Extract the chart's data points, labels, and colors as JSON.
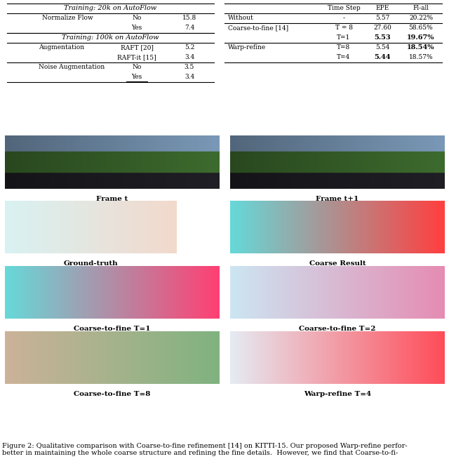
{
  "table1_title": "Training: 20k on AutoFlow",
  "table1_rows": [
    [
      "Normalize Flow",
      "No",
      "15.8"
    ],
    [
      "",
      "Yes",
      "7.4"
    ]
  ],
  "table2_title": "Training: 100k on AutoFlow",
  "table2_rows": [
    [
      "Augmentation",
      "RAFT [20]",
      "5.2"
    ],
    [
      "",
      "RAFT-it [15]",
      "3.4"
    ],
    [
      "Noise Augmentation",
      "No",
      "3.5"
    ],
    [
      "",
      "Yes",
      "3.4"
    ]
  ],
  "table3_headers": [
    "",
    "Time Step",
    "EPE",
    "Fl-all"
  ],
  "table3_rows": [
    [
      "Without",
      "-",
      "5.57",
      "20.22%"
    ],
    [
      "Coarse-to-fine [14]",
      "T = 8",
      "27.60",
      "58.65%"
    ],
    [
      "",
      "T=1",
      "5.53",
      "19.67%"
    ],
    [
      "Warp-refine",
      "T=8",
      "5.54",
      "18.54%"
    ],
    [
      "",
      "T=4",
      "5.44",
      "18.57%"
    ]
  ],
  "table3_bold": [
    [
      1,
      2
    ],
    [
      1,
      3
    ],
    [
      2,
      2
    ],
    [
      2,
      3
    ],
    [
      3,
      2
    ],
    [
      3,
      3
    ],
    [
      4,
      1
    ],
    [
      4,
      2
    ]
  ],
  "image_labels": [
    "Frame t",
    "Frame t+1",
    "Ground-truth",
    "Coarse Result",
    "Coarse-to-fine T=1",
    "Coarse-to-fine T=2",
    "Coarse-to-fine T=8",
    "Warp-refine T=4"
  ],
  "caption": "Figure 2: Qualitative comparison with Coarse-to-fine refinement [14] on KITTI-15. Our proposed Warp-refine perfor-\nbetter in maintaining the whole coarse structure and refining the fine details.  However, we find that Coarse-to-fi-",
  "bg_color": "#ffffff",
  "text_color": "#000000",
  "label_fontsize": 7.5,
  "caption_fontsize": 7.5
}
